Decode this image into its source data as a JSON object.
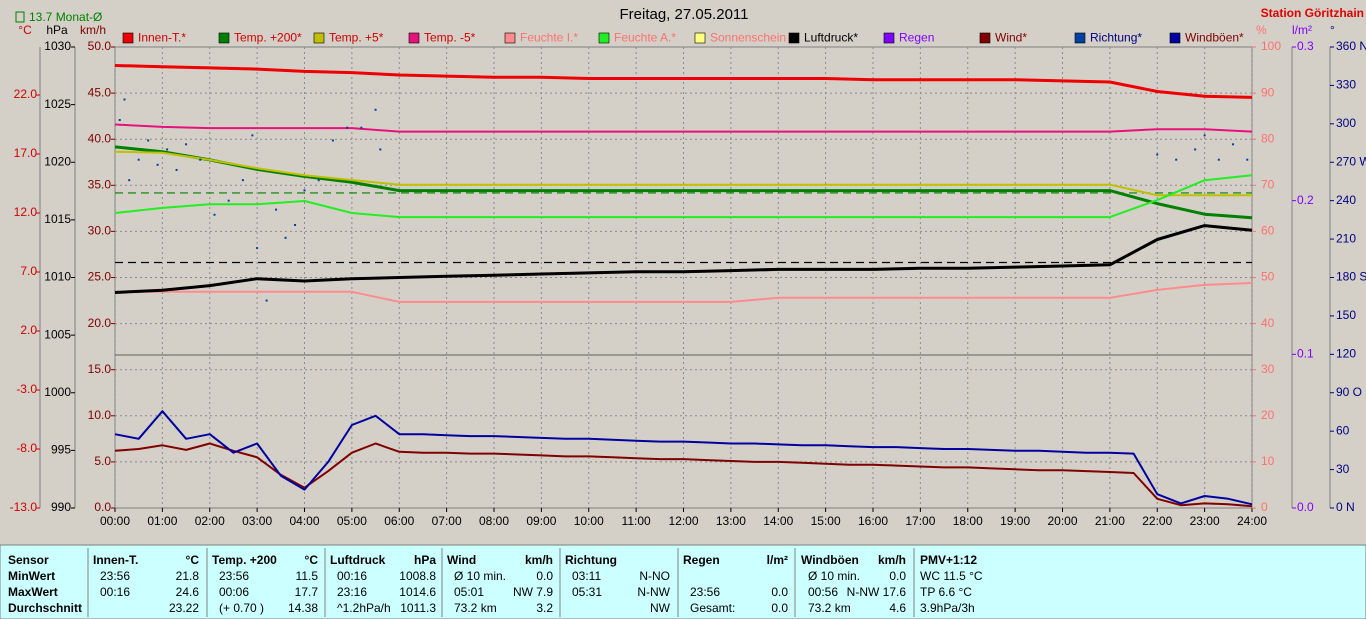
{
  "chart_data": {
    "type": "line",
    "title": "Freitag, 27.05.2011",
    "station": "Station Göritzhain",
    "xlim": [
      0,
      24
    ],
    "xticks": [
      {
        "value": 0,
        "label": "00:00"
      },
      {
        "value": 1,
        "label": "01:00"
      },
      {
        "value": 2,
        "label": "02:00"
      },
      {
        "value": 3,
        "label": "03:00"
      },
      {
        "value": 4,
        "label": "04:00"
      },
      {
        "value": 5,
        "label": "05:00"
      },
      {
        "value": 6,
        "label": "06:00"
      },
      {
        "value": 7,
        "label": "07:00"
      },
      {
        "value": 8,
        "label": "08:00"
      },
      {
        "value": 9,
        "label": "09:00"
      },
      {
        "value": 10,
        "label": "10:00"
      },
      {
        "value": 11,
        "label": "11:00"
      },
      {
        "value": 12,
        "label": "12:00"
      },
      {
        "value": 13,
        "label": "13:00"
      },
      {
        "value": 14,
        "label": "14:00"
      },
      {
        "value": 15,
        "label": "15:00"
      },
      {
        "value": 16,
        "label": "16:00"
      },
      {
        "value": 17,
        "label": "17:00"
      },
      {
        "value": 18,
        "label": "18:00"
      },
      {
        "value": 19,
        "label": "19:00"
      },
      {
        "value": 20,
        "label": "20:00"
      },
      {
        "value": 21,
        "label": "21:00"
      },
      {
        "value": 22,
        "label": "22:00"
      },
      {
        "value": 23,
        "label": "23:00"
      },
      {
        "value": 24,
        "label": "24:00"
      }
    ],
    "grid": true,
    "grid_axis": 2,
    "axes": [
      {
        "unit": "°C",
        "color": "#d00000",
        "ylim": [
          -13,
          26.07
        ],
        "yticks": [
          {
            "value": 22,
            "label": "22.0"
          },
          {
            "value": 17,
            "label": "17.0"
          },
          {
            "value": 12,
            "label": "12.0"
          },
          {
            "value": 7,
            "label": "7.0"
          },
          {
            "value": 2,
            "label": "2.0"
          },
          {
            "value": -3,
            "label": "-3.0"
          },
          {
            "value": -8,
            "label": "-8.0"
          },
          {
            "value": -13,
            "label": "-13.0"
          }
        ]
      },
      {
        "unit": "hPa",
        "color": "#000000",
        "ylim": [
          990,
          1030
        ],
        "yticks": [
          1030,
          1025,
          1020,
          1015,
          1010,
          1005,
          1000,
          995,
          990
        ]
      },
      {
        "unit": "km/h",
        "color": "#800000",
        "ylim": [
          0,
          50
        ],
        "yticks": [
          {
            "value": 50,
            "label": "50.0"
          },
          {
            "value": 45,
            "label": "45.0"
          },
          {
            "value": 40,
            "label": "40.0"
          },
          {
            "value": 35,
            "label": "35.0"
          },
          {
            "value": 30,
            "label": "30.0"
          },
          {
            "value": 25,
            "label": "25.0"
          },
          {
            "value": 20,
            "label": "20.0"
          },
          {
            "value": 15,
            "label": "15.0"
          },
          {
            "value": 10,
            "label": "10.0"
          },
          {
            "value": 5,
            "label": "5.0"
          },
          {
            "value": 0,
            "label": "0.0"
          }
        ]
      },
      {
        "unit": "%",
        "color": "#ff7070",
        "ylim": [
          0,
          100
        ],
        "yticks": [
          100,
          90,
          80,
          70,
          60,
          50,
          40,
          30,
          20,
          10,
          0
        ]
      },
      {
        "unit": "l/m²",
        "color": "#8000ff",
        "ylim": [
          0,
          0.3
        ],
        "yticks": [
          0.3,
          0.2,
          0.1,
          {
            "value": 0,
            "label": "0.0"
          }
        ]
      },
      {
        "unit": "°",
        "color": "#000080",
        "ylim": [
          0,
          360
        ],
        "yticks": [
          {
            "value": 360,
            "label": "360 N"
          },
          330,
          300,
          {
            "value": 270,
            "label": "270 W"
          },
          240,
          210,
          {
            "value": 180,
            "label": "180 S"
          },
          150,
          120,
          {
            "value": 90,
            "label": "90 O"
          },
          60,
          30,
          {
            "value": 0,
            "label": "0 N"
          }
        ]
      }
    ],
    "reference_lines": [
      {
        "axis": 0,
        "value": 13.7,
        "color": "#008000",
        "label": "13.7 Monat-Ø"
      },
      {
        "axis": 1,
        "value": 1011.3,
        "color": "#000000"
      }
    ],
    "x": [
      0,
      1,
      2,
      3,
      4,
      5,
      6,
      7,
      8,
      9,
      10,
      11,
      12,
      13,
      14,
      15,
      16,
      17,
      18,
      19,
      20,
      21,
      22,
      23,
      24
    ],
    "series": [
      {
        "name": "Innen-T.*",
        "color": "#ee0000",
        "axis": 0,
        "width": 3,
        "values": [
          24.5,
          24.4,
          24.3,
          24.2,
          24.0,
          23.9,
          23.7,
          23.6,
          23.5,
          23.5,
          23.4,
          23.4,
          23.4,
          23.4,
          23.4,
          23.4,
          23.3,
          23.3,
          23.3,
          23.3,
          23.2,
          23.1,
          22.3,
          21.9,
          21.8
        ]
      },
      {
        "name": "Temp. +200*",
        "color": "#008000",
        "axis": 0,
        "width": 3,
        "values": [
          17.6,
          17.2,
          16.5,
          15.7,
          15.1,
          14.6,
          13.9,
          13.9,
          13.9,
          13.9,
          13.9,
          13.9,
          13.9,
          13.9,
          13.9,
          13.9,
          13.9,
          13.9,
          13.9,
          13.9,
          13.9,
          13.9,
          12.8,
          11.9,
          11.6
        ]
      },
      {
        "name": "Temp. +5*",
        "color": "#c0c000",
        "axis": 0,
        "width": 2,
        "values": [
          17.2,
          17.1,
          16.5,
          15.8,
          15.2,
          14.8,
          14.4,
          14.4,
          14.4,
          14.4,
          14.4,
          14.4,
          14.4,
          14.4,
          14.4,
          14.4,
          14.4,
          14.4,
          14.4,
          14.4,
          14.4,
          14.4,
          13.5,
          13.5,
          13.5
        ]
      },
      {
        "name": "Temp. -5*",
        "color": "#e8107a",
        "axis": 0,
        "width": 2,
        "values": [
          19.5,
          19.3,
          19.2,
          19.2,
          19.2,
          19.2,
          18.9,
          18.9,
          18.9,
          18.9,
          18.9,
          18.9,
          18.9,
          18.9,
          18.9,
          18.9,
          18.9,
          18.9,
          18.9,
          18.9,
          18.9,
          18.9,
          19.1,
          19.1,
          18.9
        ]
      },
      {
        "name": "Feuchte I.*",
        "color": "#ff8c8c",
        "axis": 3,
        "width": 2,
        "values": [
          46.9,
          46.9,
          46.9,
          46.9,
          46.9,
          46.9,
          44.7,
          44.7,
          44.7,
          44.7,
          44.7,
          44.7,
          44.7,
          44.7,
          45.6,
          45.6,
          45.6,
          45.6,
          45.6,
          45.6,
          45.6,
          45.6,
          47.3,
          48.4,
          48.8
        ]
      },
      {
        "name": "Feuchte A.*",
        "color": "#22ee22",
        "axis": 3,
        "width": 2,
        "values": [
          64.0,
          65.1,
          65.9,
          65.9,
          66.6,
          64.0,
          63.1,
          63.1,
          63.1,
          63.1,
          63.1,
          63.1,
          63.1,
          63.1,
          63.1,
          63.1,
          63.1,
          63.1,
          63.1,
          63.1,
          63.1,
          63.1,
          66.8,
          71.1,
          72.2
        ]
      },
      {
        "name": "Sonnenschein",
        "color": "#ffff80",
        "axis": 3
      },
      {
        "name": "Luftdruck*",
        "color": "#000000",
        "axis": 1,
        "width": 3,
        "values": [
          1008.7,
          1008.9,
          1009.3,
          1009.9,
          1009.7,
          1009.9,
          1010.0,
          1010.1,
          1010.2,
          1010.3,
          1010.4,
          1010.5,
          1010.5,
          1010.6,
          1010.7,
          1010.7,
          1010.7,
          1010.8,
          1010.8,
          1010.9,
          1011.0,
          1011.1,
          1013.3,
          1014.5,
          1014.1
        ]
      },
      {
        "name": "Regen",
        "color": "#8000ff",
        "axis": 4
      },
      {
        "name": "Wind*",
        "color": "#800000",
        "axis": 2,
        "width": 2,
        "x": [
          0,
          0.5,
          1,
          1.5,
          2,
          2.5,
          3,
          3.5,
          4,
          4.5,
          5,
          5.5,
          6,
          6.5,
          7,
          7.5,
          8,
          8.5,
          9,
          9.5,
          10,
          10.5,
          11,
          11.5,
          12,
          12.5,
          13,
          13.5,
          14,
          14.5,
          15,
          15.5,
          16,
          16.5,
          17,
          17.5,
          18,
          18.5,
          19,
          19.5,
          20,
          20.5,
          21,
          21.5,
          22,
          22.5,
          23,
          23.5,
          24
        ],
        "values": [
          6.2,
          6.4,
          6.8,
          6.3,
          7.0,
          6.2,
          5.5,
          3.6,
          2.2,
          4.0,
          6.0,
          7.0,
          6.1,
          6.0,
          6.0,
          5.9,
          5.9,
          5.8,
          5.7,
          5.6,
          5.6,
          5.5,
          5.4,
          5.3,
          5.3,
          5.2,
          5.1,
          5.0,
          5.0,
          4.9,
          4.8,
          4.7,
          4.7,
          4.6,
          4.5,
          4.4,
          4.4,
          4.3,
          4.2,
          4.1,
          4.1,
          4.0,
          3.9,
          3.8,
          1.0,
          0.3,
          0.5,
          0.4,
          0.2
        ]
      },
      {
        "name": "Richtung*",
        "color": "#0040a0",
        "axis": 5,
        "type": "scatter",
        "x": [
          0.1,
          0.2,
          0.3,
          0.5,
          0.7,
          0.9,
          1.1,
          1.3,
          1.5,
          1.8,
          2.1,
          2.4,
          2.7,
          2.9,
          3.0,
          3.2,
          3.4,
          3.6,
          3.8,
          4.0,
          4.3,
          4.6,
          4.9,
          5.2,
          5.5,
          5.6,
          22.0,
          22.4,
          22.8,
          23.0,
          23.3,
          23.6,
          23.9
        ],
        "values": [
          303,
          319,
          256,
          272,
          287,
          268,
          280,
          264,
          284,
          272,
          229,
          240,
          256,
          291,
          203,
          162,
          233,
          211,
          221,
          248,
          256,
          287,
          297,
          297,
          311,
          280,
          276,
          272,
          280,
          291,
          272,
          284,
          272
        ]
      },
      {
        "name": "Windböen*",
        "color": "#0000a0",
        "axis": 2,
        "width": 2,
        "x": [
          0,
          0.5,
          1,
          1.5,
          2,
          2.5,
          3,
          3.5,
          4,
          4.5,
          5,
          5.5,
          6,
          6.5,
          7,
          7.5,
          8,
          8.5,
          9,
          9.5,
          10,
          10.5,
          11,
          11.5,
          12,
          12.5,
          13,
          13.5,
          14,
          14.5,
          15,
          15.5,
          16,
          16.5,
          17,
          17.5,
          18,
          18.5,
          19,
          19.5,
          20,
          20.5,
          21,
          21.5,
          22,
          22.5,
          23,
          23.5,
          24
        ],
        "values": [
          8.0,
          7.5,
          10.5,
          7.5,
          8.0,
          6.0,
          7.0,
          3.5,
          2.0,
          5.0,
          9.0,
          10.0,
          8.0,
          8.0,
          7.9,
          7.8,
          7.8,
          7.7,
          7.6,
          7.5,
          7.5,
          7.4,
          7.3,
          7.2,
          7.2,
          7.1,
          7.0,
          7.0,
          6.9,
          6.8,
          6.8,
          6.7,
          6.6,
          6.6,
          6.5,
          6.4,
          6.4,
          6.3,
          6.2,
          6.2,
          6.1,
          6.0,
          6.0,
          5.9,
          1.5,
          0.5,
          1.3,
          1.0,
          0.4
        ]
      }
    ]
  },
  "table": {
    "header": "Sensor",
    "row_labels": [
      "MinWert",
      "MaxWert",
      "Durchschnitt"
    ],
    "columns": [
      {
        "name": "Innen-T.",
        "unit": "°C",
        "rows": [
          {
            "left": "23:56",
            "right": "21.8"
          },
          {
            "left": "00:16",
            "right": "24.6"
          },
          {
            "right": "23.22"
          }
        ]
      },
      {
        "name": "Temp. +200",
        "unit": "°C",
        "rows": [
          {
            "left": "23:56",
            "right": "11.5"
          },
          {
            "left": "00:06",
            "right": "17.7"
          },
          {
            "left": "(+ 0.70 )",
            "right": "14.38"
          }
        ]
      },
      {
        "name": "Luftdruck",
        "unit": "hPa",
        "rows": [
          {
            "left": "00:16",
            "right": "1008.8"
          },
          {
            "left": "23:16",
            "right": "1014.6"
          },
          {
            "left": "^1.2hPa/h",
            "right": "1011.3"
          }
        ]
      },
      {
        "name": "Wind",
        "unit": "km/h",
        "rows": [
          {
            "left": "Ø 10 min.",
            "right": "0.0"
          },
          {
            "left": "05:01",
            "right": "NW 7.9"
          },
          {
            "left": "73.2 km",
            "right": "3.2"
          }
        ]
      },
      {
        "name": "Richtung",
        "rows": [
          {
            "left": "03:11",
            "right": "N-NO"
          },
          {
            "left": "05:31",
            "right": "N-NW"
          },
          {
            "right": "NW"
          }
        ]
      },
      {
        "name": "Regen",
        "unit": "l/m²",
        "rows": [
          {},
          {
            "left": "23:56",
            "right": "0.0"
          },
          {
            "left": "Gesamt:",
            "right": "0.0"
          }
        ]
      },
      {
        "name": "Windböen",
        "unit": "km/h",
        "rows": [
          {
            "left": "Ø 10 min.",
            "right": "0.0"
          },
          {
            "left": "00:56",
            "right": "N-NW 17.6"
          },
          {
            "left": "73.2 km",
            "right": "4.6"
          }
        ]
      },
      {
        "name": "PMV+1:12",
        "rows": [
          {
            "left": "WC 11.5 °C"
          },
          {
            "left": "TP 6.6 °C"
          },
          {
            "left": "3.9hPa/3h"
          }
        ]
      }
    ]
  }
}
